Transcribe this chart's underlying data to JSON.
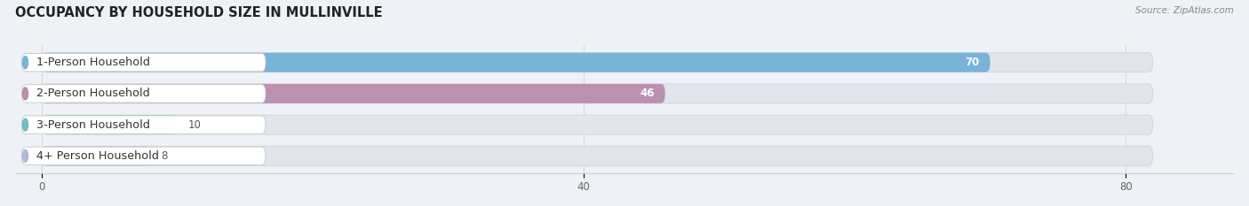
{
  "title": "OCCUPANCY BY HOUSEHOLD SIZE IN MULLINVILLE",
  "source": "Source: ZipAtlas.com",
  "categories": [
    "1-Person Household",
    "2-Person Household",
    "3-Person Household",
    "4+ Person Household"
  ],
  "values": [
    70,
    46,
    10,
    8
  ],
  "bar_colors": [
    "#6aaed6",
    "#b784a7",
    "#5bbcb8",
    "#a8b4d8"
  ],
  "value_colors": [
    "white",
    "white",
    "#555555",
    "#555555"
  ],
  "value_inside": [
    true,
    true,
    false,
    false
  ],
  "xlim": [
    -2,
    88
  ],
  "xticks": [
    0,
    40,
    80
  ],
  "background_color": "#eef1f5",
  "bar_bg_color": "#e2e6ec",
  "bar_bg_edge_color": "#d0d5dd",
  "label_box_color": "white",
  "label_box_edge": "#cccccc",
  "title_fontsize": 10.5,
  "label_fontsize": 9.2,
  "value_fontsize": 8.5,
  "tick_fontsize": 8.5,
  "bar_height": 0.62,
  "x_max_bg": 82
}
